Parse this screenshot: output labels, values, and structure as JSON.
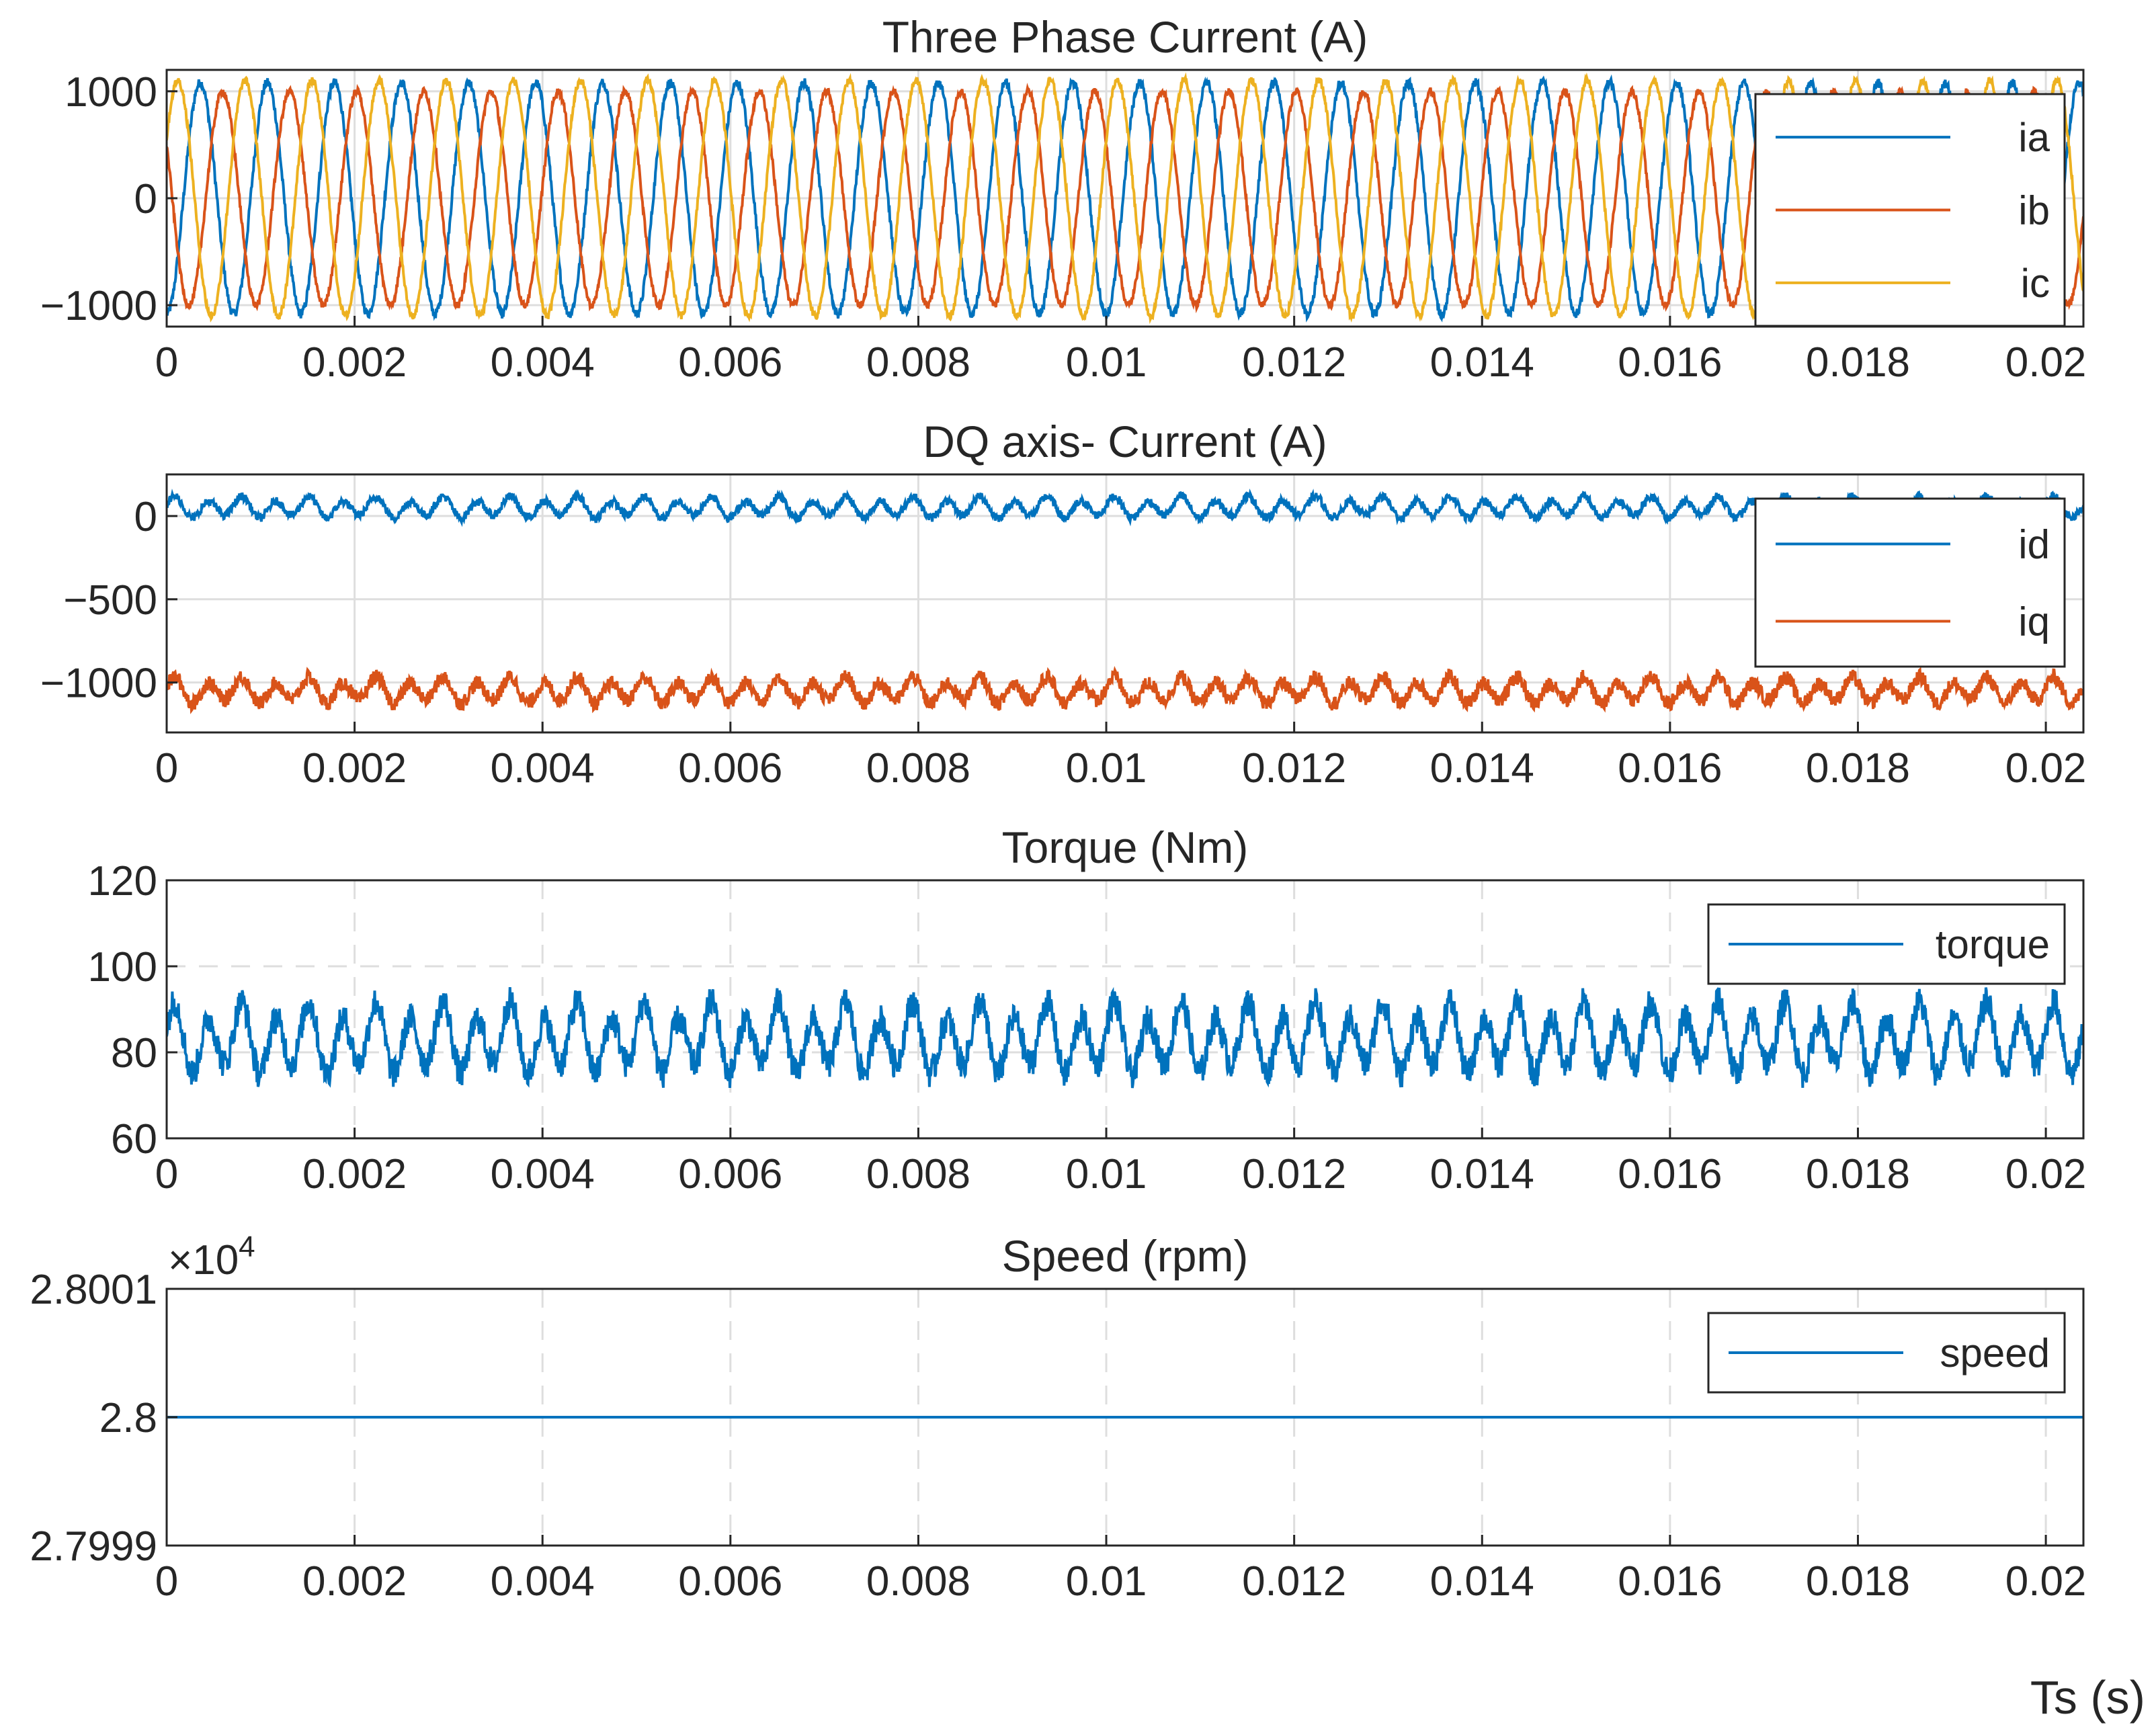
{
  "figure": {
    "xlabel": "Ts (s)"
  },
  "chart_data": [
    {
      "type": "line",
      "title": "Three Phase Current (A)",
      "xlabel": "",
      "ylabel": "",
      "xlim": [
        0,
        0.0204
      ],
      "ylim": [
        -1200,
        1200
      ],
      "xticks": [
        0,
        0.002,
        0.004,
        0.006,
        0.008,
        0.01,
        0.012,
        0.014,
        0.016,
        0.018,
        0.02
      ],
      "xtick_labels": [
        "0",
        "0.002",
        "0.004",
        "0.006",
        "0.008",
        "0.01",
        "0.012",
        "0.014",
        "0.016",
        "0.018",
        "0.02"
      ],
      "yticks": [
        -1000,
        0,
        1000
      ],
      "ytick_labels": [
        "−1000",
        "0",
        "1000"
      ],
      "grid": "solid",
      "legend_position": "top-right",
      "series": [
        {
          "name": "ia",
          "color": "#0072BD",
          "amplitude": 1080,
          "frequency_hz": 1400,
          "phase_deg": -90,
          "noise": 45
        },
        {
          "name": "ib",
          "color": "#D95319",
          "amplitude": 1000,
          "frequency_hz": 1400,
          "phase_deg": 150,
          "noise": 35
        },
        {
          "name": "ic",
          "color": "#EDB120",
          "amplitude": 1100,
          "frequency_hz": 1400,
          "phase_deg": 30,
          "noise": 35
        }
      ]
    },
    {
      "type": "line",
      "title": "DQ axis- Current (A)",
      "xlabel": "",
      "ylabel": "",
      "xlim": [
        0,
        0.0204
      ],
      "ylim": [
        -1300,
        250
      ],
      "xticks": [
        0,
        0.002,
        0.004,
        0.006,
        0.008,
        0.01,
        0.012,
        0.014,
        0.016,
        0.018,
        0.02
      ],
      "xtick_labels": [
        "0",
        "0.002",
        "0.004",
        "0.006",
        "0.008",
        "0.01",
        "0.012",
        "0.014",
        "0.016",
        "0.018",
        "0.02"
      ],
      "yticks": [
        -1000,
        -500,
        0
      ],
      "ytick_labels": [
        "−1000",
        "−500",
        "0"
      ],
      "grid": "solid",
      "legend_position": "top-right",
      "series": [
        {
          "name": "id",
          "color": "#0072BD",
          "mean": 50,
          "ripple": 70,
          "ripple_hz": 2800,
          "noise": 25
        },
        {
          "name": "iq",
          "color": "#D95319",
          "mean": -1050,
          "ripple": 85,
          "ripple_hz": 2800,
          "noise": 45
        }
      ]
    },
    {
      "type": "line",
      "title": "Torque (Nm)",
      "xlabel": "",
      "ylabel": "",
      "xlim": [
        0,
        0.0204
      ],
      "ylim": [
        60,
        120
      ],
      "xticks": [
        0,
        0.002,
        0.004,
        0.006,
        0.008,
        0.01,
        0.012,
        0.014,
        0.016,
        0.018,
        0.02
      ],
      "xtick_labels": [
        "0",
        "0.002",
        "0.004",
        "0.006",
        "0.008",
        "0.01",
        "0.012",
        "0.014",
        "0.016",
        "0.018",
        "0.02"
      ],
      "yticks": [
        60,
        80,
        100,
        120
      ],
      "ytick_labels": [
        "60",
        "80",
        "100",
        "120"
      ],
      "grid": "dashed",
      "legend_position": "top-right",
      "series": [
        {
          "name": "torque",
          "color": "#0072BD",
          "mean": 83,
          "ripple": 9,
          "ripple_hz": 2800,
          "noise": 3.5
        }
      ]
    },
    {
      "type": "line",
      "title": "Speed (rpm)",
      "xlabel": "",
      "ylabel": "",
      "exponent_label": "×10",
      "exponent_power": "4",
      "xlim": [
        0,
        0.0204
      ],
      "ylim": [
        2.7999,
        2.8001
      ],
      "xticks": [
        0,
        0.002,
        0.004,
        0.006,
        0.008,
        0.01,
        0.012,
        0.014,
        0.016,
        0.018,
        0.02
      ],
      "xtick_labels": [
        "0",
        "0.002",
        "0.004",
        "0.006",
        "0.008",
        "0.01",
        "0.012",
        "0.014",
        "0.016",
        "0.018",
        "0.02"
      ],
      "yticks": [
        2.7999,
        2.8,
        2.8001
      ],
      "ytick_labels": [
        "2.7999",
        "2.8",
        "2.8001"
      ],
      "grid": "dashed-x",
      "legend_position": "top-right",
      "series": [
        {
          "name": "speed",
          "color": "#0072BD",
          "x": [
            0,
            0.0204
          ],
          "values": [
            2.8,
            2.8
          ]
        }
      ]
    }
  ]
}
